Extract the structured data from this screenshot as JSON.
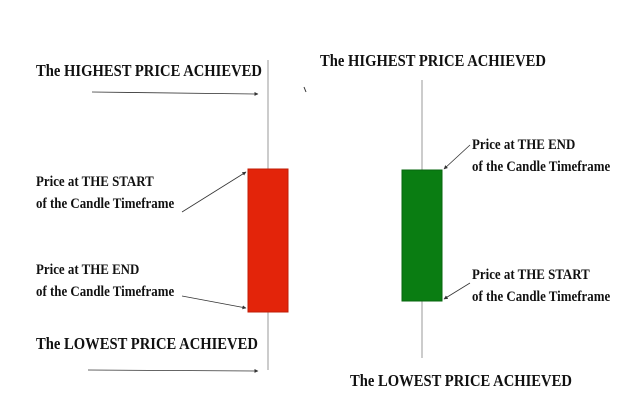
{
  "left_candle": {
    "color": "#e3240a",
    "high_label": "The HIGHEST PRICE ACHIEVED",
    "start_label": [
      "Price at THE START",
      "of the Candle Timeframe"
    ],
    "end_label": [
      "Price at THE END",
      "of the Candle Timeframe"
    ],
    "low_label": "The LOWEST PRICE ACHIEVED"
  },
  "right_candle": {
    "color": "#0a7d12",
    "high_label": "The HIGHEST PRICE ACHIEVED",
    "end_label": [
      "Price at THE END",
      "of the Candle Timeframe"
    ],
    "start_label": [
      "Price at THE START",
      "of the Candle Timeframe"
    ],
    "low_label": "The LOWEST PRICE ACHIEVED"
  }
}
